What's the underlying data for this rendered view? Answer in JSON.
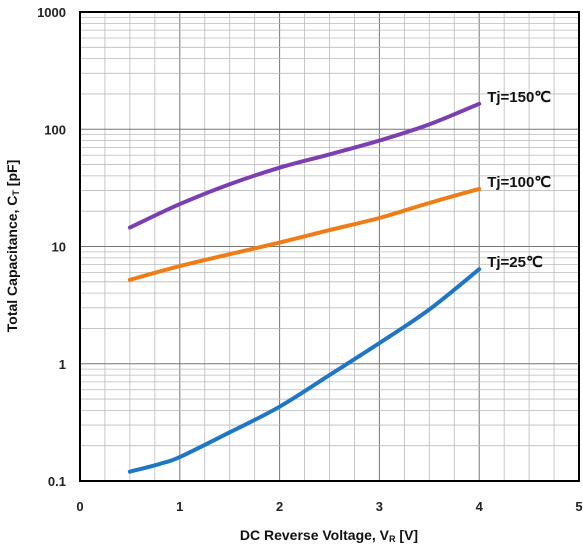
{
  "chart_data": {
    "type": "line",
    "title": "",
    "xlabel": "DC Reverse Voltage, VR [V]",
    "xlabel_parts": {
      "main": "DC Reverse Voltage, V",
      "sub": "R",
      "unit": " [V]"
    },
    "ylabel": "Total Capacitance, CT [pF]",
    "ylabel_parts": {
      "main": "Total Capacitance, C",
      "sub": "T",
      "unit": " [pF]"
    },
    "xlim": [
      0,
      5
    ],
    "ylim": [
      0.1,
      1000
    ],
    "yscale": "log",
    "grid": true,
    "x_ticks": [
      "0",
      "1",
      "2",
      "3",
      "4",
      "5"
    ],
    "y_ticks": [
      "0.1",
      "1",
      "10",
      "100",
      "1000"
    ],
    "series": [
      {
        "name": "Tj=150℃",
        "color": "#7b3fb0",
        "x": [
          0.5,
          1,
          1.5,
          2,
          2.5,
          3,
          3.5,
          4
        ],
        "y": [
          14.5,
          23,
          34,
          47,
          61,
          80,
          110,
          165
        ]
      },
      {
        "name": "Tj=100℃",
        "color": "#f07c16",
        "x": [
          0.5,
          1,
          1.5,
          2,
          2.5,
          3,
          3.5,
          4
        ],
        "y": [
          5.2,
          6.8,
          8.6,
          10.8,
          13.8,
          17.5,
          23.5,
          31
        ]
      },
      {
        "name": "Tj=25℃",
        "color": "#1f77c4",
        "x": [
          0.5,
          0.8,
          1,
          1.5,
          2,
          2.5,
          3,
          3.5,
          4
        ],
        "y": [
          0.12,
          0.14,
          0.16,
          0.26,
          0.43,
          0.8,
          1.5,
          2.9,
          6.4
        ]
      }
    ]
  }
}
